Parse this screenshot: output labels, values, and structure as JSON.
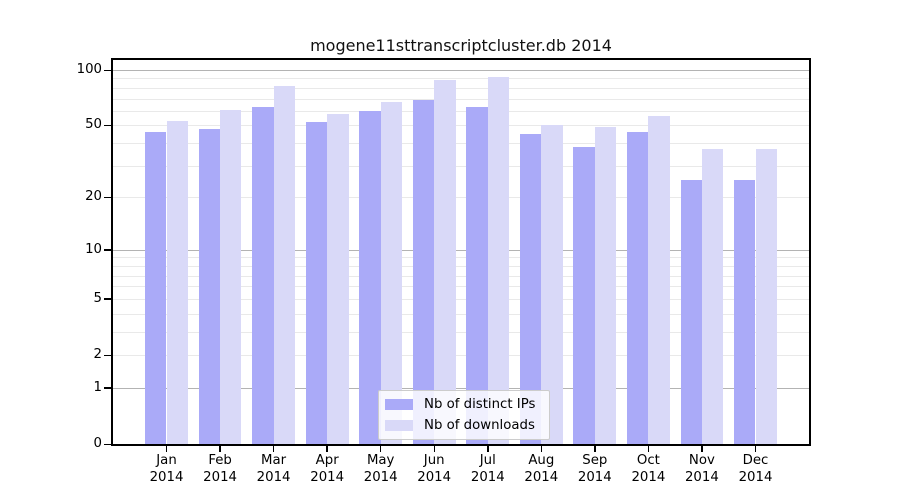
{
  "chart_data": {
    "type": "bar",
    "title": "mogene11sttranscriptcluster.db 2014",
    "categories": [
      "Jan",
      "Feb",
      "Mar",
      "Apr",
      "May",
      "Jun",
      "Jul",
      "Aug",
      "Sep",
      "Oct",
      "Nov",
      "Dec"
    ],
    "category_year": "2014",
    "series": [
      {
        "name": "Nb of distinct IPs",
        "color": "#aaaaf8",
        "values": [
          46,
          48,
          63,
          52,
          60,
          69,
          63,
          45,
          38,
          46,
          25,
          25
        ]
      },
      {
        "name": "Nb of downloads",
        "color": "#d9d9f8",
        "values": [
          53,
          61,
          82,
          58,
          67,
          88,
          92,
          50,
          49,
          56,
          37,
          37
        ]
      }
    ],
    "y_axis": {
      "scale": "log10(value+1)",
      "tick_labels": [
        "100",
        "50",
        "20",
        "10",
        "5",
        "2",
        "1",
        "0"
      ],
      "tick_values": [
        100,
        50,
        20,
        10,
        5,
        2,
        1,
        0
      ],
      "gridlines_major": [
        1,
        10,
        100
      ],
      "gridlines_minor": [
        2,
        3,
        4,
        5,
        6,
        7,
        8,
        9,
        20,
        30,
        40,
        50,
        60,
        70,
        80,
        90
      ],
      "ylim": [
        0,
        113
      ]
    },
    "legend": {
      "entries": [
        "Nb of distinct IPs",
        "Nb of downloads"
      ],
      "position": "inside-bottom-center"
    },
    "palette": {
      "distinct_ips": "#aaaaf8",
      "downloads": "#d9d9f8",
      "gridline_major": "#b3b3b3",
      "gridline_minor": "#e9e9e9",
      "axis": "#000000"
    }
  }
}
